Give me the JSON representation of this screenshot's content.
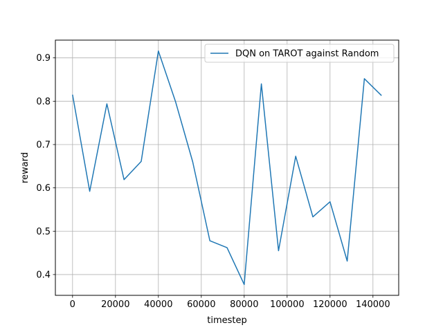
{
  "chart_data": {
    "type": "line",
    "xlabel": "timestep",
    "ylabel": "reward",
    "xlim": [
      -8000,
      152000
    ],
    "ylim": [
      0.352,
      0.941
    ],
    "x_ticks": [
      0,
      20000,
      40000,
      60000,
      80000,
      100000,
      120000,
      140000
    ],
    "y_ticks": [
      0.4,
      0.5,
      0.6,
      0.7,
      0.8,
      0.9
    ],
    "grid": true,
    "legend_position": "top-right",
    "series": [
      {
        "name": "DQN on TAROT against Random",
        "color": "#1f77b4",
        "x": [
          0,
          8000,
          16000,
          24000,
          32000,
          40000,
          48000,
          56000,
          64000,
          72000,
          80000,
          88000,
          96000,
          104000,
          112000,
          120000,
          128000,
          136000,
          144000
        ],
        "y": [
          0.815,
          0.592,
          0.794,
          0.619,
          0.661,
          0.916,
          0.799,
          0.66,
          0.478,
          0.462,
          0.377,
          0.84,
          0.455,
          0.673,
          0.533,
          0.568,
          0.431,
          0.852,
          0.813
        ]
      }
    ]
  }
}
